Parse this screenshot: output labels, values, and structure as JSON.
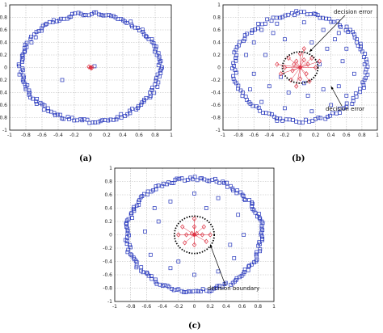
{
  "panel_labels": [
    "(a)",
    "(b)",
    "(c)"
  ],
  "colors": {
    "blue": "#2233bb",
    "red": "#dd3344",
    "grid": "#b8b8b8",
    "boundary": "#000000"
  },
  "chart_data": [
    {
      "type": "scatter",
      "panel": "(a)",
      "xlim": [
        -1,
        1
      ],
      "ylim": [
        -1,
        1
      ],
      "xticks": [
        "-1",
        "-0.8",
        "-0.6",
        "-0.4",
        "-0.2",
        "0",
        "0.2",
        "0.4",
        "0.6",
        "0.8",
        "1"
      ],
      "yticks": [
        "-1",
        "-0.8",
        "-0.6",
        "-0.4",
        "-0.2",
        "0",
        "0.2",
        "0.4",
        "0.6",
        "0.8",
        "1"
      ],
      "grid": true,
      "series": [
        {
          "marker": "square",
          "color": "blue",
          "ring_radius": 0.86,
          "ring_count": 170,
          "points": [
            [
              -0.35,
              -0.2
            ],
            [
              0.05,
              0.02
            ]
          ]
        },
        {
          "marker": "diamond",
          "color": "red",
          "points": [
            [
              0.0,
              0.0
            ],
            [
              0.02,
              0.0
            ],
            [
              -0.02,
              0.01
            ],
            [
              0.01,
              -0.01
            ]
          ]
        }
      ],
      "annotations": []
    },
    {
      "type": "scatter",
      "panel": "(b)",
      "xlim": [
        -1,
        1
      ],
      "ylim": [
        -1,
        1
      ],
      "xticks": [
        "-1",
        "-0.8",
        "-0.6",
        "-0.4",
        "-0.2",
        "0",
        "0.2",
        "0.4",
        "0.6",
        "0.8",
        "1"
      ],
      "yticks": [
        "-1",
        "-0.8",
        "-0.6",
        "-0.4",
        "-0.2",
        "0",
        "0.2",
        "0.4",
        "0.6",
        "0.8",
        "1"
      ],
      "grid": true,
      "boundary": {
        "cx": 0.0,
        "cy": 0.0,
        "rx": 0.23,
        "ry": 0.25
      },
      "series": [
        {
          "marker": "square",
          "color": "blue",
          "ring_radius": 0.86,
          "ring_count": 130,
          "points": [
            [
              -0.5,
              0.6
            ],
            [
              -0.3,
              0.7
            ],
            [
              0.05,
              0.72
            ],
            [
              0.3,
              0.6
            ],
            [
              0.5,
              0.55
            ],
            [
              0.6,
              0.3
            ],
            [
              -0.6,
              0.4
            ],
            [
              -0.45,
              0.2
            ],
            [
              -0.2,
              0.45
            ],
            [
              0.15,
              0.4
            ],
            [
              0.35,
              0.3
            ],
            [
              0.55,
              0.1
            ],
            [
              -0.6,
              -0.1
            ],
            [
              -0.4,
              -0.3
            ],
            [
              -0.15,
              -0.4
            ],
            [
              0.1,
              -0.45
            ],
            [
              0.3,
              -0.35
            ],
            [
              0.5,
              -0.3
            ],
            [
              -0.5,
              -0.55
            ],
            [
              -0.2,
              -0.65
            ],
            [
              0.15,
              -0.7
            ],
            [
              0.4,
              -0.6
            ],
            [
              0.6,
              -0.45
            ],
            [
              -0.05,
              0.9
            ],
            [
              0.2,
              0.85
            ],
            [
              -0.3,
              -0.85
            ],
            [
              0.7,
              -0.1
            ],
            [
              -0.7,
              0.2
            ],
            [
              0.25,
              0.05
            ],
            [
              -0.25,
              -0.15
            ],
            [
              0.45,
              0.45
            ],
            [
              -0.35,
              0.55
            ],
            [
              0.05,
              -0.25
            ],
            [
              0.65,
              0.6
            ],
            [
              -0.65,
              -0.35
            ],
            [
              0.75,
              0.35
            ]
          ]
        },
        {
          "marker": "diamond",
          "color": "red",
          "points": [
            [
              0.0,
              0.0
            ],
            [
              -0.05,
              0.1
            ],
            [
              0.05,
              0.12
            ],
            [
              0.1,
              0.05
            ],
            [
              -0.1,
              -0.05
            ],
            [
              0.0,
              0.22
            ],
            [
              -0.15,
              0.15
            ],
            [
              0.15,
              0.15
            ],
            [
              -0.2,
              0.0
            ],
            [
              0.2,
              0.0
            ],
            [
              0.0,
              -0.18
            ],
            [
              -0.12,
              -0.2
            ],
            [
              0.12,
              -0.22
            ],
            [
              -0.25,
              -0.1
            ],
            [
              0.05,
              0.3
            ],
            [
              -0.05,
              -0.3
            ],
            [
              0.25,
              0.1
            ],
            [
              -0.3,
              0.05
            ],
            [
              0.08,
              -0.1
            ],
            [
              -0.08,
              0.05
            ]
          ]
        }
      ],
      "annotations": [
        {
          "text": "decision error",
          "anchor": "upper-right"
        },
        {
          "text": "decision error",
          "anchor": "lower-right"
        }
      ]
    },
    {
      "type": "scatter",
      "panel": "(c)",
      "xlim": [
        -1,
        1
      ],
      "ylim": [
        -1,
        1
      ],
      "xticks": [
        "-1",
        "-0.8",
        "-0.6",
        "-0.4",
        "-0.2",
        "0",
        "0.2",
        "0.4",
        "0.6",
        "0.8",
        "1"
      ],
      "yticks": [
        "-1",
        "-0.8",
        "-0.6",
        "-0.4",
        "-0.2",
        "0",
        "0.2",
        "0.4",
        "0.6",
        "0.8",
        "1"
      ],
      "grid": true,
      "boundary": {
        "cx": 0.0,
        "cy": 0.0,
        "rx": 0.25,
        "ry": 0.28
      },
      "series": [
        {
          "marker": "square",
          "color": "blue",
          "ring_radius": 0.85,
          "ring_count": 170,
          "points": [
            [
              -0.5,
              0.4
            ],
            [
              -0.3,
              0.5
            ],
            [
              0.3,
              0.55
            ],
            [
              0.55,
              0.3
            ],
            [
              -0.55,
              -0.3
            ],
            [
              -0.3,
              -0.5
            ],
            [
              0.3,
              -0.55
            ],
            [
              0.5,
              -0.35
            ],
            [
              0.0,
              0.62
            ],
            [
              0.0,
              -0.6
            ],
            [
              -0.62,
              0.05
            ],
            [
              0.62,
              0.0
            ],
            [
              -0.45,
              0.2
            ],
            [
              0.45,
              -0.15
            ],
            [
              0.15,
              0.4
            ],
            [
              -0.2,
              -0.4
            ]
          ]
        },
        {
          "marker": "diamond",
          "color": "red",
          "points": [
            [
              0.0,
              0.0
            ],
            [
              0.03,
              0.02
            ],
            [
              -0.03,
              0.02
            ],
            [
              0.0,
              0.12
            ],
            [
              0.0,
              0.24
            ],
            [
              0.0,
              -0.15
            ],
            [
              -0.1,
              0.0
            ],
            [
              0.1,
              0.0
            ],
            [
              -0.2,
              0.0
            ],
            [
              0.2,
              0.0
            ],
            [
              -0.15,
              0.12
            ],
            [
              0.15,
              -0.1
            ],
            [
              0.12,
              0.12
            ],
            [
              -0.12,
              -0.12
            ]
          ]
        }
      ],
      "annotations": [
        {
          "text": "decision boundary",
          "anchor": "lower-right"
        }
      ]
    }
  ]
}
